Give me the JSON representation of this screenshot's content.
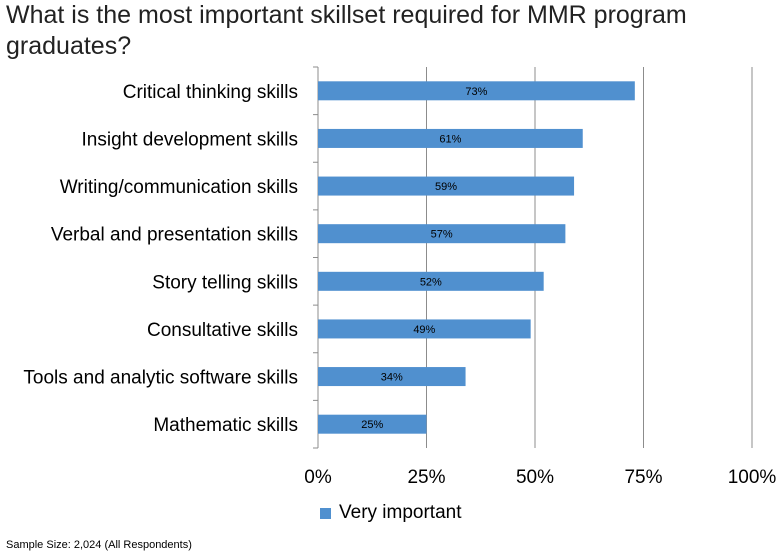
{
  "chart_data": {
    "type": "bar",
    "orientation": "horizontal",
    "title": "What is the most important skillset required for MMR program graduates?",
    "categories": [
      "Critical thinking skills",
      "Insight development skills",
      "Writing/communication skills",
      "Verbal and presentation skills",
      "Story telling skills",
      "Consultative skills",
      "Tools and analytic software skills",
      "Mathematic skills"
    ],
    "series": [
      {
        "name": "Very important",
        "values": [
          73,
          61,
          59,
          57,
          52,
          49,
          34,
          25
        ],
        "data_labels": [
          "73%",
          "61%",
          "59%",
          "57%",
          "52%",
          "49%",
          "34%",
          "25%"
        ]
      }
    ],
    "xlim": [
      0,
      100
    ],
    "xticks": [
      0,
      25,
      50,
      75,
      100
    ],
    "xtick_labels": [
      "0%",
      "25%",
      "50%",
      "75%",
      "100%"
    ],
    "grid": true,
    "legend_position": "bottom",
    "bar_color": "#5090CF"
  },
  "footnote": "Sample Size: 2,024 (All Respondents)"
}
